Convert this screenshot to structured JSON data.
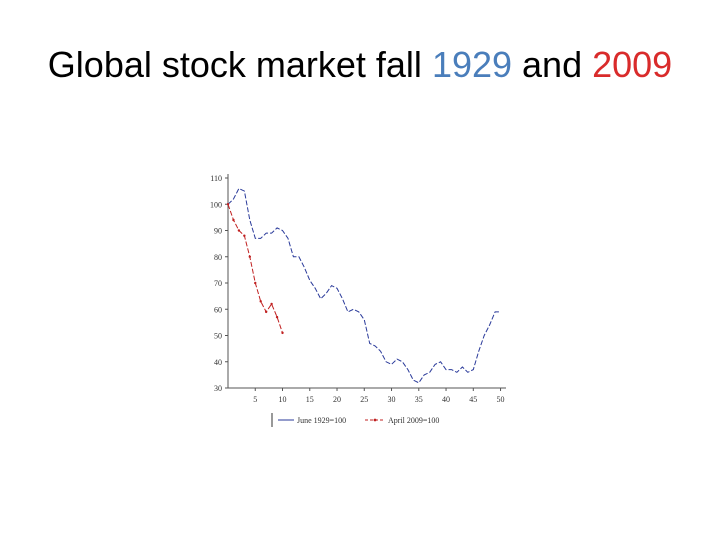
{
  "slide": {
    "title_prefix": "Global stock market fall ",
    "title_year1": "1929",
    "title_mid": " and ",
    "title_year2": "2009",
    "year1_color": "#4a7ebb",
    "year2_color": "#d92b2b"
  },
  "chart_data": {
    "type": "line",
    "title": "",
    "xlabel": "",
    "ylabel": "",
    "xlim": [
      0,
      51
    ],
    "ylim": [
      30,
      110
    ],
    "x_ticks": [
      "5",
      "10",
      "15",
      "20",
      "25",
      "30",
      "35",
      "40",
      "45",
      "50"
    ],
    "y_ticks": [
      "110",
      "100",
      "90",
      "80",
      "70",
      "60",
      "50",
      "40",
      "30"
    ],
    "grid": false,
    "legend_position": "bottom",
    "series": [
      {
        "name": "June 1929=100",
        "color": "#2a3a9a",
        "x": [
          0,
          1,
          2,
          3,
          4,
          5,
          6,
          7,
          8,
          9,
          10,
          11,
          12,
          13,
          14,
          15,
          16,
          17,
          18,
          19,
          20,
          21,
          22,
          23,
          24,
          25,
          26,
          27,
          28,
          29,
          30,
          31,
          32,
          33,
          34,
          35,
          36,
          37,
          38,
          39,
          40,
          41,
          42,
          43,
          44,
          45,
          46,
          47,
          48,
          49,
          50
        ],
        "y": [
          100,
          102,
          106,
          105,
          94,
          87,
          87,
          89,
          89,
          91,
          90,
          87,
          80,
          80,
          76,
          71,
          68,
          64,
          66,
          69,
          68,
          64,
          59,
          60,
          59,
          56,
          47,
          46,
          44,
          40,
          39,
          41,
          40,
          37,
          33,
          32,
          35,
          36,
          39,
          40,
          37,
          37,
          36,
          38,
          36,
          37,
          44,
          50,
          54,
          59,
          59
        ]
      },
      {
        "name": "April 2009=100",
        "color": "#c02020",
        "x": [
          0,
          1,
          2,
          3,
          4,
          5,
          6,
          7,
          8,
          9,
          10
        ],
        "y": [
          100,
          94,
          90,
          88,
          80,
          70,
          63,
          59,
          62,
          57,
          51
        ]
      }
    ]
  }
}
